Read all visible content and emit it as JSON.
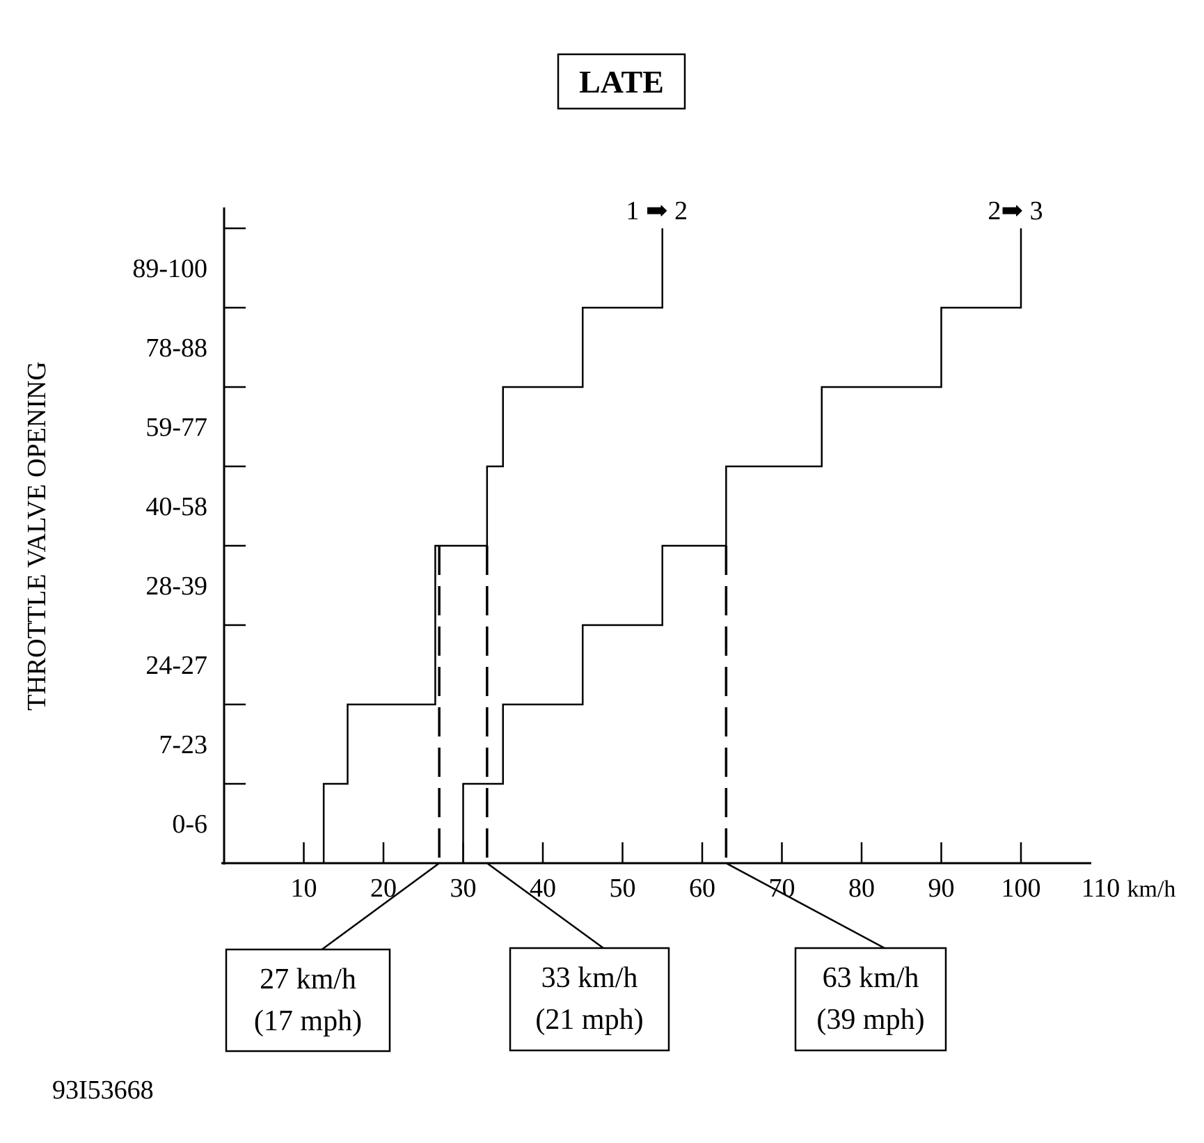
{
  "chart_data": {
    "type": "line",
    "title": "LATE",
    "ylabel": "THROTTLE VALVE OPENING",
    "xlabel": "",
    "x_unit": "km/h",
    "xlim": [
      0,
      110
    ],
    "x_ticks": [
      10,
      20,
      30,
      40,
      50,
      60,
      70,
      80,
      90,
      100,
      110
    ],
    "y_categories": [
      "0-6",
      "7-23",
      "24-27",
      "28-39",
      "40-58",
      "59-77",
      "78-88",
      "89-100"
    ],
    "series": [
      {
        "name": "1 ➡ 2",
        "steps": [
          {
            "band": "0-6",
            "from": 12.5,
            "to": 15.5
          },
          {
            "band": "7-23",
            "from": 15.5,
            "to": 26.5
          },
          {
            "band": "24-27",
            "from": 26.5,
            "to": 26.5
          },
          {
            "band": "28-39",
            "from": 26.5,
            "to": 33
          },
          {
            "band": "40-58",
            "from": 33,
            "to": 35
          },
          {
            "band": "59-77",
            "from": 35,
            "to": 45
          },
          {
            "band": "78-88",
            "from": 45,
            "to": 55
          },
          {
            "band": "89-100",
            "from": 55,
            "to": 55
          }
        ]
      },
      {
        "name": "2➡ 3",
        "steps": [
          {
            "band": "0-6",
            "from": 30,
            "to": 35
          },
          {
            "band": "7-23",
            "from": 35,
            "to": 45
          },
          {
            "band": "24-27",
            "from": 45,
            "to": 55
          },
          {
            "band": "28-39",
            "from": 55,
            "to": 63
          },
          {
            "band": "40-58",
            "from": 63,
            "to": 75
          },
          {
            "band": "59-77",
            "from": 75,
            "to": 90
          },
          {
            "band": "78-88",
            "from": 90,
            "to": 100
          },
          {
            "band": "89-100",
            "from": 100,
            "to": 100
          }
        ]
      }
    ],
    "markers": [
      {
        "x": 27,
        "top_band": "28-39",
        "label_line1": "27 km/h",
        "label_line2": "(17 mph)"
      },
      {
        "x": 33,
        "top_band": "28-39",
        "label_line1": "33 km/h",
        "label_line2": "(21 mph)"
      },
      {
        "x": 63,
        "top_band": "28-39",
        "label_line1": "63 km/h",
        "label_line2": "(39 mph)"
      }
    ],
    "figure_id": "93I53668"
  }
}
